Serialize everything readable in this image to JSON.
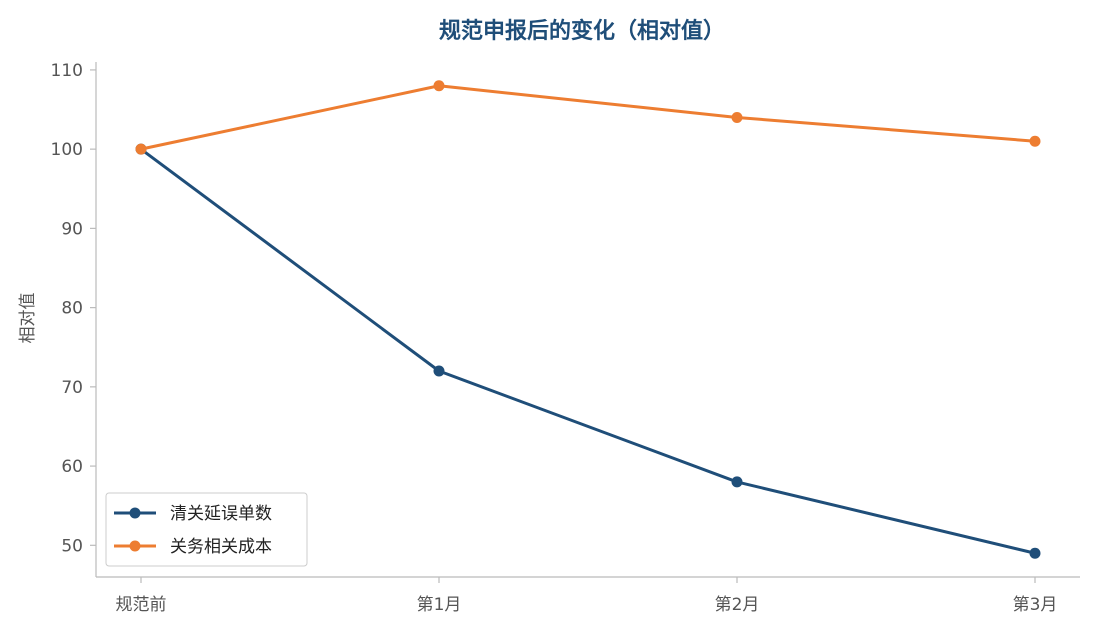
{
  "chart_data": {
    "type": "line",
    "title": "规范申报后的变化（相对值）",
    "xlabel": "",
    "ylabel": "相对值",
    "categories": [
      "规范前",
      "第1月",
      "第2月",
      "第3月"
    ],
    "series": [
      {
        "name": "清关延误单数",
        "values": [
          100,
          72,
          58,
          49
        ],
        "color": "#1f4e79"
      },
      {
        "name": "关务相关成本",
        "values": [
          100,
          108,
          104,
          101
        ],
        "color": "#ed7d31"
      }
    ],
    "ylim": [
      46,
      111
    ],
    "yticks": [
      50,
      60,
      70,
      80,
      90,
      100,
      110
    ],
    "grid": false,
    "legend_position": "bottom-left",
    "title_color": "#1f4e79"
  }
}
